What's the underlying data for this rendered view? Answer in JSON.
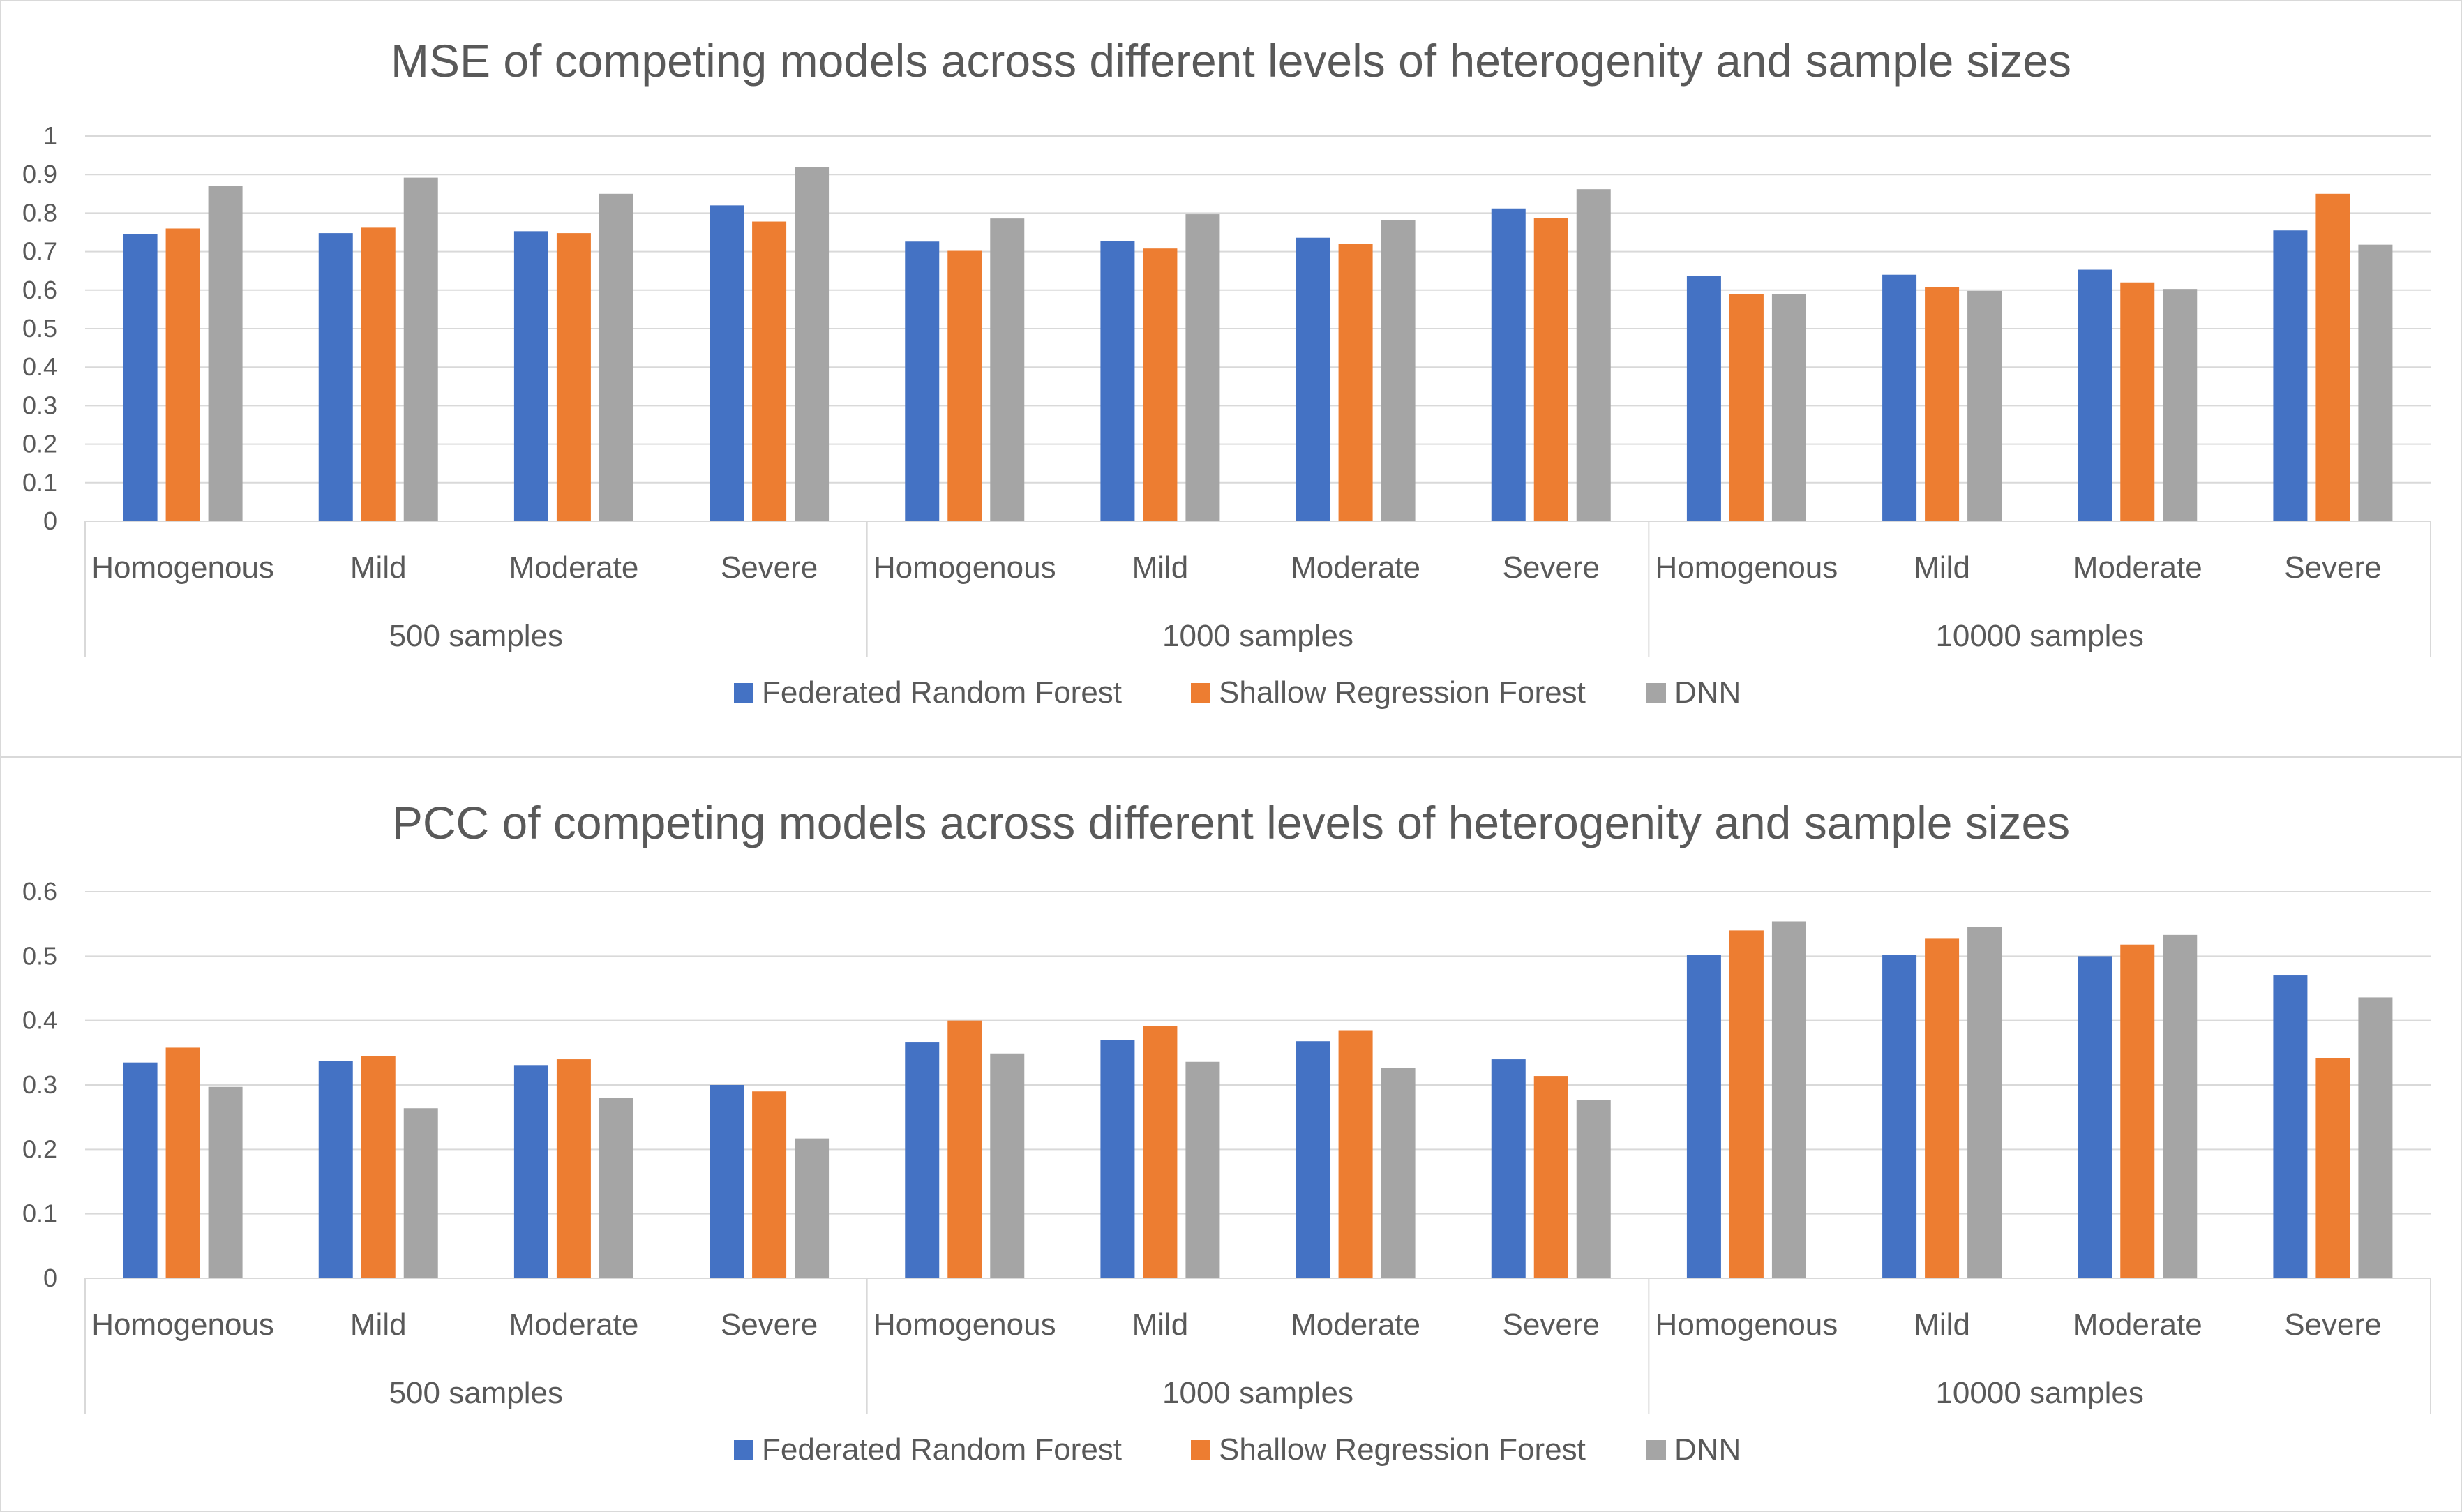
{
  "chart_data": [
    {
      "type": "bar",
      "title": "MSE of competing models across different levels of heterogenity and sample sizes",
      "categories": [
        "Homogenous",
        "Mild",
        "Moderate",
        "Severe",
        "Homogenous",
        "Mild",
        "Moderate",
        "Severe",
        "Homogenous",
        "Mild",
        "Moderate",
        "Severe"
      ],
      "groups": [
        "500 samples",
        "1000 samples",
        "10000 samples"
      ],
      "ylim": [
        0,
        1
      ],
      "yticks": [
        "0",
        "0.1",
        "0.2",
        "0.3",
        "0.4",
        "0.5",
        "0.6",
        "0.7",
        "0.8",
        "0.9",
        "1"
      ],
      "grid": true,
      "legend_position": "bottom",
      "series": [
        {
          "name": "Federated Random Forest",
          "color": "#4472c4",
          "values": [
            0.745,
            0.748,
            0.753,
            0.82,
            0.726,
            0.728,
            0.736,
            0.812,
            0.637,
            0.64,
            0.653,
            0.755
          ]
        },
        {
          "name": "Shallow Regression Forest",
          "color": "#ed7d31",
          "values": [
            0.76,
            0.762,
            0.748,
            0.778,
            0.702,
            0.708,
            0.72,
            0.788,
            0.59,
            0.607,
            0.62,
            0.85
          ]
        },
        {
          "name": "DNN",
          "color": "#a5a5a5",
          "values": [
            0.87,
            0.892,
            0.85,
            0.92,
            0.786,
            0.797,
            0.782,
            0.862,
            0.59,
            0.598,
            0.603,
            0.718
          ]
        }
      ]
    },
    {
      "type": "bar",
      "title": "PCC of competing models across different levels of heterogenity and sample sizes",
      "categories": [
        "Homogenous",
        "Mild",
        "Moderate",
        "Severe",
        "Homogenous",
        "Mild",
        "Moderate",
        "Severe",
        "Homogenous",
        "Mild",
        "Moderate",
        "Severe"
      ],
      "groups": [
        "500 samples",
        "1000 samples",
        "10000 samples"
      ],
      "ylim": [
        0,
        0.6
      ],
      "yticks": [
        "0",
        "0.1",
        "0.2",
        "0.3",
        "0.4",
        "0.5",
        "0.6"
      ],
      "grid": true,
      "legend_position": "bottom",
      "series": [
        {
          "name": "Federated Random Forest",
          "color": "#4472c4",
          "values": [
            0.335,
            0.337,
            0.33,
            0.3,
            0.366,
            0.37,
            0.368,
            0.34,
            0.502,
            0.502,
            0.5,
            0.47
          ]
        },
        {
          "name": "Shallow Regression Forest",
          "color": "#ed7d31",
          "values": [
            0.358,
            0.345,
            0.34,
            0.29,
            0.4,
            0.392,
            0.385,
            0.314,
            0.54,
            0.527,
            0.518,
            0.342
          ]
        },
        {
          "name": "DNN",
          "color": "#a5a5a5",
          "values": [
            0.297,
            0.264,
            0.28,
            0.217,
            0.349,
            0.336,
            0.327,
            0.277,
            0.554,
            0.545,
            0.533,
            0.436
          ]
        }
      ]
    }
  ]
}
